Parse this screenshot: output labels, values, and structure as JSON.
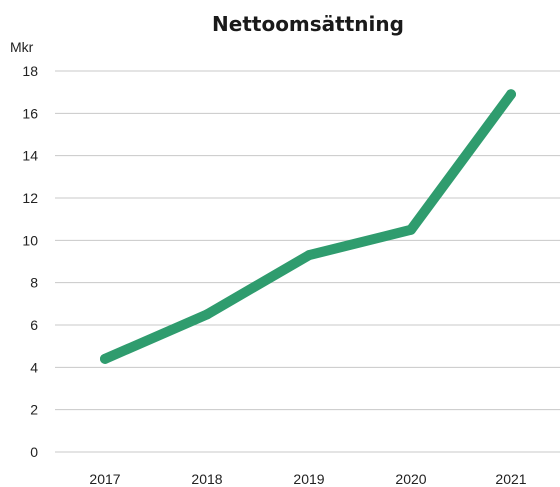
{
  "chart_data": {
    "type": "line",
    "title": "Nettoomsättning",
    "ylabel": "Mkr",
    "xlabel": "",
    "categories": [
      "2017",
      "2018",
      "2019",
      "2020",
      "2021"
    ],
    "series": [
      {
        "values": [
          4.4,
          6.5,
          9.3,
          10.5,
          16.9
        ],
        "color": "#2f9c6e"
      }
    ],
    "ylim": [
      0,
      18
    ],
    "yticks": [
      0,
      2,
      4,
      6,
      8,
      10,
      12,
      14,
      16,
      18
    ],
    "grid": "horizontal",
    "legend": "none"
  }
}
